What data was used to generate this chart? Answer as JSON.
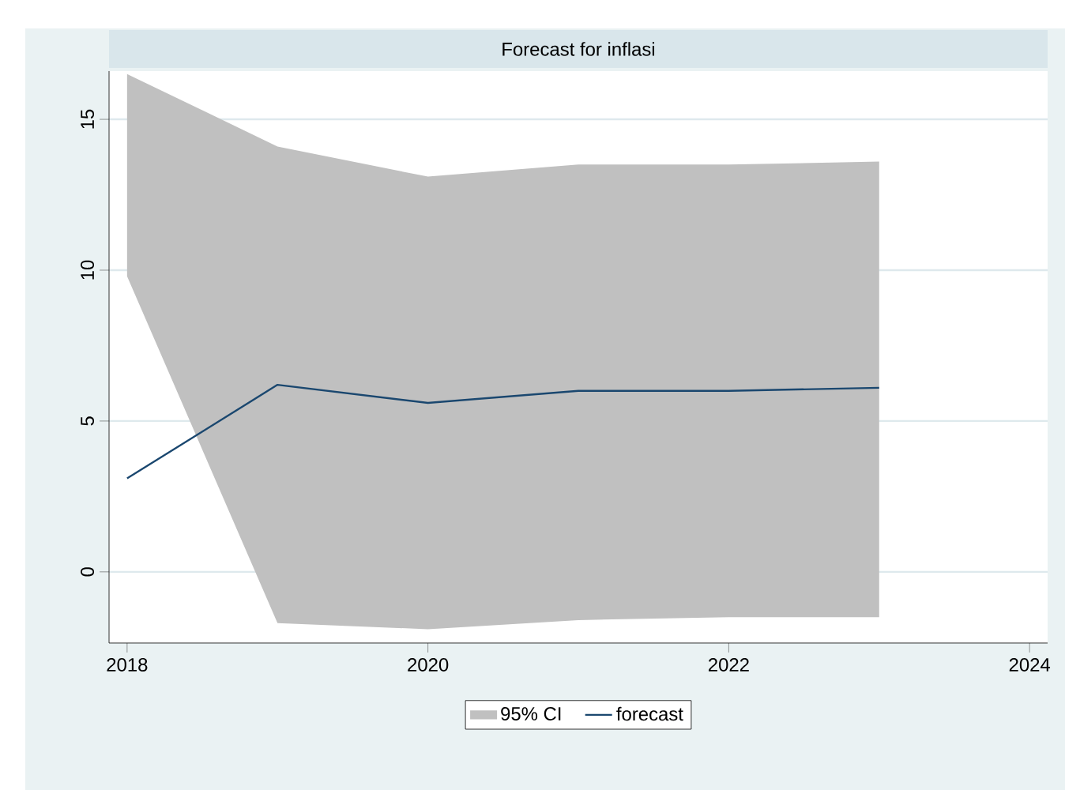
{
  "chart_data": {
    "type": "line",
    "title": "Forecast for inflasi",
    "x": [
      2018,
      2019,
      2020,
      2021,
      2022,
      2023
    ],
    "series": [
      {
        "name": "forecast",
        "color": "#1a476f",
        "values": [
          3.1,
          6.2,
          5.6,
          6.0,
          6.0,
          6.1
        ],
        "lower": [
          9.8,
          -1.7,
          -1.9,
          -1.6,
          -1.5,
          -1.5
        ],
        "upper": [
          16.5,
          14.1,
          13.1,
          13.5,
          13.5,
          13.6
        ]
      }
    ],
    "annotations": [
      "95% CI"
    ],
    "xlim": [
      2017.88,
      2024.12
    ],
    "xticks": [
      2018,
      2020,
      2022,
      2024
    ],
    "ylim": [
      -2.36,
      16.6
    ],
    "yticks": [
      0,
      5,
      10,
      15
    ],
    "grid": "y",
    "legend": "bottom",
    "marker": "none",
    "line_style": "solid"
  }
}
